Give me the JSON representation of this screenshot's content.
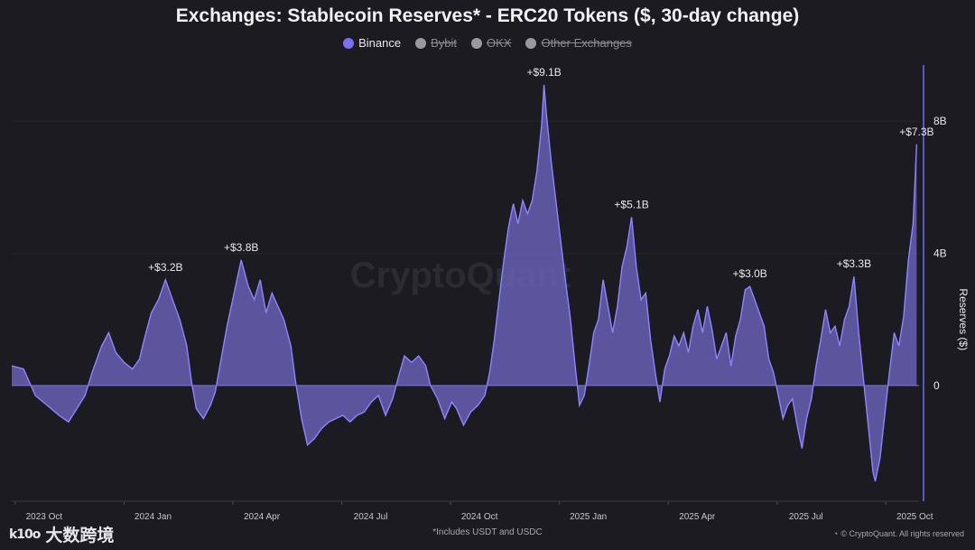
{
  "title": "Exchanges: Stablecoin Reserves* - ERC20 Tokens ($, 30-day change)",
  "legend": [
    {
      "label": "Binance",
      "active": true,
      "color": "#7b6ff2"
    },
    {
      "label": "Bybit",
      "active": false,
      "color": "#9a99a0"
    },
    {
      "label": "OKX",
      "active": false,
      "color": "#9a99a0"
    },
    {
      "label": "Other Exchanges",
      "active": false,
      "color": "#9a99a0"
    }
  ],
  "watermark": "CryptoQuant",
  "footnote": "*Includes USDT and USDC",
  "credit": "© CryptoQuant. All rights reserved",
  "logo_text": "大数跨境",
  "logo_mark": "k10o",
  "colors": {
    "background": "#1c1b21",
    "series_line": "#8f84ff",
    "series_fill": "#6a63b8",
    "axis_line": "#6f6cf0",
    "text": "#e9e9ee"
  },
  "chart_data": {
    "type": "area",
    "ylabel": "Reserves ($)",
    "yticks": [
      "0",
      "4B",
      "8B"
    ],
    "ytick_values": [
      0,
      4,
      8
    ],
    "ylim": [
      -3.5,
      9.7
    ],
    "unit": "billion USD",
    "xticks": [
      "2023 Oct",
      "2024 Jan",
      "2024 Apr",
      "2024 Jul",
      "2024 Oct",
      "2025 Jan",
      "2025 Apr",
      "2025 Jul",
      "2025 Oct"
    ],
    "xtick_positions": [
      3,
      95,
      187,
      279,
      371,
      463,
      555,
      647,
      739
    ],
    "xlim": [
      0,
      767
    ],
    "series": [
      {
        "name": "Binance",
        "points": [
          [
            0,
            0.6
          ],
          [
            10,
            0.5
          ],
          [
            20,
            -0.3
          ],
          [
            30,
            -0.6
          ],
          [
            40,
            -0.9
          ],
          [
            48,
            -1.1
          ],
          [
            55,
            -0.7
          ],
          [
            62,
            -0.3
          ],
          [
            68,
            0.4
          ],
          [
            76,
            1.2
          ],
          [
            82,
            1.6
          ],
          [
            88,
            1.0
          ],
          [
            95,
            0.7
          ],
          [
            102,
            0.5
          ],
          [
            108,
            0.8
          ],
          [
            112,
            1.4
          ],
          [
            118,
            2.2
          ],
          [
            124,
            2.6
          ],
          [
            130,
            3.2
          ],
          [
            136,
            2.6
          ],
          [
            142,
            2.0
          ],
          [
            148,
            1.2
          ],
          [
            152,
            0.1
          ],
          [
            156,
            -0.7
          ],
          [
            162,
            -1.0
          ],
          [
            168,
            -0.6
          ],
          [
            172,
            -0.2
          ],
          [
            176,
            0.6
          ],
          [
            182,
            1.8
          ],
          [
            188,
            2.8
          ],
          [
            194,
            3.8
          ],
          [
            200,
            3.0
          ],
          [
            205,
            2.6
          ],
          [
            210,
            3.2
          ],
          [
            215,
            2.2
          ],
          [
            220,
            2.8
          ],
          [
            225,
            2.4
          ],
          [
            230,
            2.0
          ],
          [
            236,
            1.2
          ],
          [
            240,
            0.1
          ],
          [
            245,
            -1.0
          ],
          [
            250,
            -1.8
          ],
          [
            256,
            -1.6
          ],
          [
            262,
            -1.3
          ],
          [
            268,
            -1.1
          ],
          [
            274,
            -1.0
          ],
          [
            280,
            -0.9
          ],
          [
            286,
            -1.1
          ],
          [
            292,
            -0.9
          ],
          [
            298,
            -0.8
          ],
          [
            304,
            -0.5
          ],
          [
            310,
            -0.3
          ],
          [
            316,
            -0.9
          ],
          [
            322,
            -0.4
          ],
          [
            328,
            0.4
          ],
          [
            332,
            0.9
          ],
          [
            338,
            0.7
          ],
          [
            344,
            0.9
          ],
          [
            350,
            0.6
          ],
          [
            354,
            0.0
          ],
          [
            360,
            -0.4
          ],
          [
            366,
            -1.0
          ],
          [
            372,
            -0.5
          ],
          [
            376,
            -0.7
          ],
          [
            382,
            -1.2
          ],
          [
            388,
            -0.8
          ],
          [
            394,
            -0.6
          ],
          [
            400,
            -0.3
          ],
          [
            404,
            0.4
          ],
          [
            408,
            1.4
          ],
          [
            412,
            2.6
          ],
          [
            416,
            3.8
          ],
          [
            420,
            4.8
          ],
          [
            424,
            5.5
          ],
          [
            428,
            4.9
          ],
          [
            432,
            5.6
          ],
          [
            436,
            5.2
          ],
          [
            440,
            5.6
          ],
          [
            444,
            6.5
          ],
          [
            448,
            7.9
          ],
          [
            450,
            9.1
          ],
          [
            452,
            8.2
          ],
          [
            456,
            6.8
          ],
          [
            460,
            5.6
          ],
          [
            464,
            4.4
          ],
          [
            468,
            3.2
          ],
          [
            472,
            2.1
          ],
          [
            476,
            0.7
          ],
          [
            480,
            -0.6
          ],
          [
            484,
            -0.3
          ],
          [
            488,
            0.6
          ],
          [
            492,
            1.6
          ],
          [
            496,
            2.0
          ],
          [
            500,
            3.2
          ],
          [
            504,
            2.4
          ],
          [
            508,
            1.6
          ],
          [
            512,
            2.4
          ],
          [
            516,
            3.6
          ],
          [
            520,
            4.2
          ],
          [
            524,
            5.1
          ],
          [
            528,
            3.6
          ],
          [
            532,
            2.6
          ],
          [
            536,
            2.8
          ],
          [
            540,
            1.4
          ],
          [
            544,
            0.4
          ],
          [
            548,
            -0.5
          ],
          [
            552,
            0.5
          ],
          [
            556,
            0.9
          ],
          [
            560,
            1.5
          ],
          [
            564,
            1.2
          ],
          [
            568,
            1.6
          ],
          [
            572,
            1.0
          ],
          [
            576,
            1.8
          ],
          [
            580,
            2.3
          ],
          [
            584,
            1.6
          ],
          [
            588,
            2.4
          ],
          [
            592,
            1.7
          ],
          [
            596,
            0.8
          ],
          [
            600,
            1.2
          ],
          [
            604,
            1.6
          ],
          [
            608,
            0.6
          ],
          [
            612,
            1.5
          ],
          [
            616,
            2.0
          ],
          [
            620,
            2.9
          ],
          [
            624,
            3.0
          ],
          [
            628,
            2.6
          ],
          [
            632,
            2.2
          ],
          [
            636,
            1.8
          ],
          [
            640,
            0.8
          ],
          [
            644,
            0.4
          ],
          [
            648,
            -0.3
          ],
          [
            652,
            -1.0
          ],
          [
            656,
            -0.6
          ],
          [
            660,
            -0.4
          ],
          [
            664,
            -1.2
          ],
          [
            668,
            -1.9
          ],
          [
            672,
            -1.0
          ],
          [
            676,
            -0.4
          ],
          [
            680,
            0.6
          ],
          [
            684,
            1.4
          ],
          [
            688,
            2.3
          ],
          [
            692,
            1.6
          ],
          [
            696,
            1.8
          ],
          [
            700,
            1.2
          ],
          [
            704,
            2.0
          ],
          [
            708,
            2.4
          ],
          [
            712,
            3.3
          ],
          [
            716,
            1.6
          ],
          [
            720,
            0.2
          ],
          [
            724,
            -1.2
          ],
          [
            728,
            -2.6
          ],
          [
            730,
            -2.9
          ],
          [
            734,
            -2.2
          ],
          [
            738,
            -0.9
          ],
          [
            742,
            0.4
          ],
          [
            746,
            1.6
          ],
          [
            750,
            1.2
          ],
          [
            754,
            2.1
          ],
          [
            758,
            3.8
          ],
          [
            762,
            4.9
          ],
          [
            765,
            7.3
          ]
        ]
      }
    ],
    "annotations": [
      {
        "label": "+$3.2B",
        "x": 130,
        "y": 3.2
      },
      {
        "label": "+$3.8B",
        "x": 194,
        "y": 3.8
      },
      {
        "label": "+$9.1B",
        "x": 450,
        "y": 9.1
      },
      {
        "label": "+$5.1B",
        "x": 524,
        "y": 5.1
      },
      {
        "label": "+$3.0B",
        "x": 624,
        "y": 3.0
      },
      {
        "label": "+$3.3B",
        "x": 712,
        "y": 3.3
      },
      {
        "label": "+$7.3B",
        "x": 765,
        "y": 7.3
      }
    ],
    "grid": false,
    "legend_position": "top-center"
  }
}
